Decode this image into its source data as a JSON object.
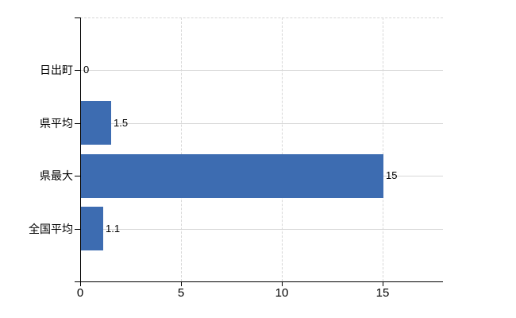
{
  "chart": {
    "background": "#ffffff",
    "bar_color": "#3d6cb1",
    "grid_color": "#d7d7d7",
    "axis_color": "#000000",
    "text_color": "#000000"
  },
  "chart_data": {
    "type": "bar",
    "orientation": "horizontal",
    "title": "",
    "xlabel": "",
    "ylabel": "",
    "categories": [
      "日出町",
      "県平均",
      "県最大",
      "全国平均"
    ],
    "values": [
      0,
      1.5,
      15,
      1.1
    ],
    "data_labels": [
      "0",
      "1.5",
      "15",
      "1.1"
    ],
    "x_ticks": [
      "0",
      "5",
      "10",
      "15"
    ],
    "x_tick_values": [
      0,
      5,
      10,
      15
    ],
    "xlim": [
      0,
      18
    ],
    "grid": true,
    "grid_vertical_style": "dashed",
    "grid_horizontal_style": "solid",
    "legend": false,
    "data_label_position": "outside-end"
  }
}
